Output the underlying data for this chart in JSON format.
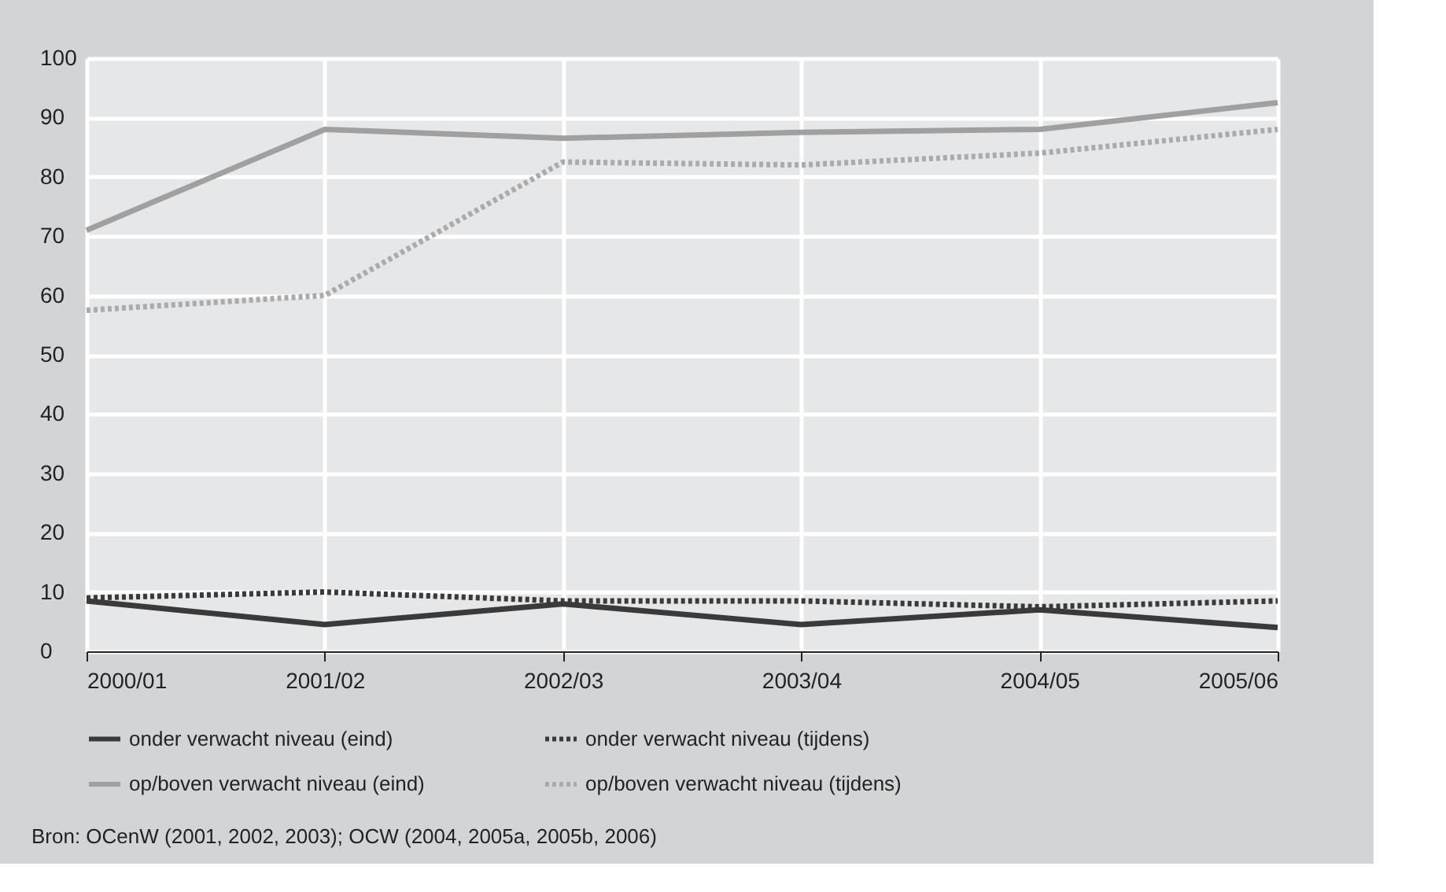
{
  "chart_data": {
    "type": "line",
    "categories": [
      "2000/01",
      "2001/02",
      "2002/03",
      "2003/04",
      "2004/05",
      "2005/06"
    ],
    "series": [
      {
        "name": "onder verwacht niveau (eind)",
        "color": "#3a3a3a",
        "line_style": "solid",
        "values": [
          8.5,
          4.5,
          8,
          4.5,
          7,
          4
        ]
      },
      {
        "name": "onder verwacht niveau (tijdens)",
        "color": "#3a3a3a",
        "line_style": "dotted",
        "values": [
          9,
          10,
          8.5,
          8.5,
          7.5,
          8.5
        ]
      },
      {
        "name": "op/boven verwacht niveau (eind)",
        "color": "#a0a0a0",
        "line_style": "solid",
        "values": [
          71,
          88,
          86.5,
          87.5,
          88,
          92.5
        ]
      },
      {
        "name": "op/boven verwacht niveau (tijdens)",
        "color": "#ababab",
        "line_style": "dotted",
        "values": [
          57.5,
          60,
          82.5,
          82,
          84,
          88
        ]
      }
    ],
    "ylim": [
      0,
      100
    ],
    "yticks": [
      0,
      10,
      20,
      30,
      40,
      50,
      60,
      70,
      80,
      90,
      100
    ],
    "grid": true,
    "legend": "bottom",
    "marker": "none",
    "annotations": [
      "Bron: OCenW (2001, 2002, 2003); OCW (2004, 2005a, 2005b, 2006)"
    ]
  }
}
